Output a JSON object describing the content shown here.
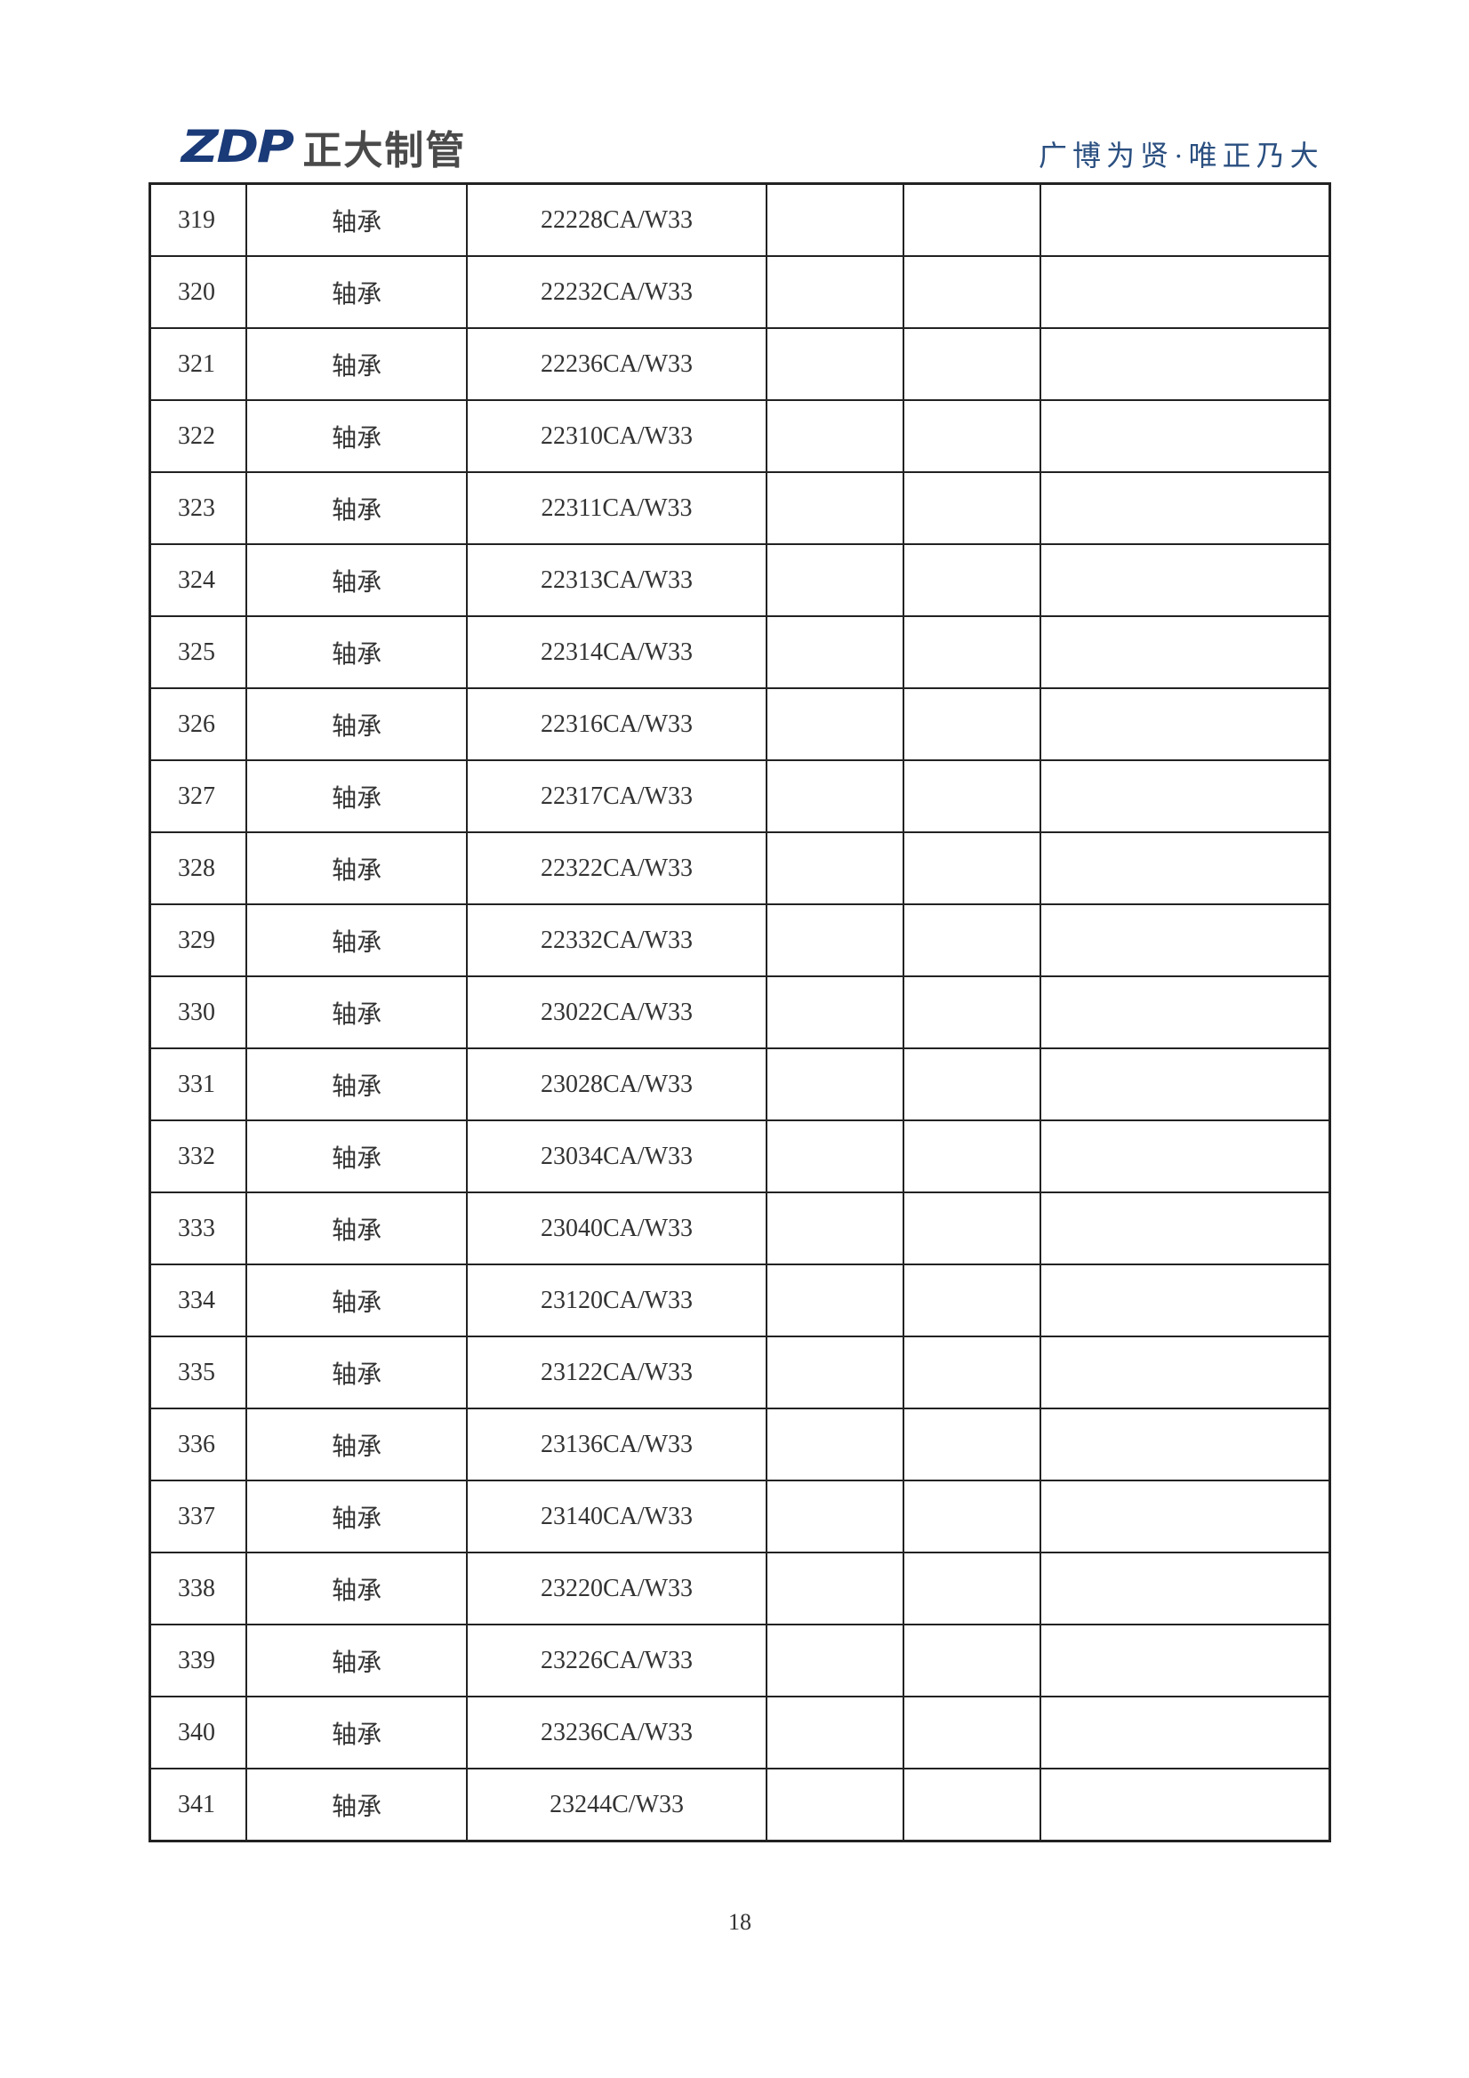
{
  "header": {
    "logo_mark": "ZDP",
    "logo_text": "正大制管",
    "slogan": "广博为贤·唯正乃大"
  },
  "table": {
    "rows": [
      {
        "no": "319",
        "name": "轴承",
        "model": "22228CA/W33"
      },
      {
        "no": "320",
        "name": "轴承",
        "model": "22232CA/W33"
      },
      {
        "no": "321",
        "name": "轴承",
        "model": "22236CA/W33"
      },
      {
        "no": "322",
        "name": "轴承",
        "model": "22310CA/W33"
      },
      {
        "no": "323",
        "name": "轴承",
        "model": "22311CA/W33"
      },
      {
        "no": "324",
        "name": "轴承",
        "model": "22313CA/W33"
      },
      {
        "no": "325",
        "name": "轴承",
        "model": "22314CA/W33"
      },
      {
        "no": "326",
        "name": "轴承",
        "model": "22316CA/W33"
      },
      {
        "no": "327",
        "name": "轴承",
        "model": "22317CA/W33"
      },
      {
        "no": "328",
        "name": "轴承",
        "model": "22322CA/W33"
      },
      {
        "no": "329",
        "name": "轴承",
        "model": "22332CA/W33"
      },
      {
        "no": "330",
        "name": "轴承",
        "model": "23022CA/W33"
      },
      {
        "no": "331",
        "name": "轴承",
        "model": "23028CA/W33"
      },
      {
        "no": "332",
        "name": "轴承",
        "model": "23034CA/W33"
      },
      {
        "no": "333",
        "name": "轴承",
        "model": "23040CA/W33"
      },
      {
        "no": "334",
        "name": "轴承",
        "model": "23120CA/W33"
      },
      {
        "no": "335",
        "name": "轴承",
        "model": "23122CA/W33"
      },
      {
        "no": "336",
        "name": "轴承",
        "model": "23136CA/W33"
      },
      {
        "no": "337",
        "name": "轴承",
        "model": "23140CA/W33"
      },
      {
        "no": "338",
        "name": "轴承",
        "model": "23220CA/W33"
      },
      {
        "no": "339",
        "name": "轴承",
        "model": "23226CA/W33"
      },
      {
        "no": "340",
        "name": "轴承",
        "model": "23236CA/W33"
      },
      {
        "no": "341",
        "name": "轴承",
        "model": "23244C/W33"
      }
    ]
  },
  "footer": {
    "page_number": "18"
  },
  "colors": {
    "logo_blue": "#1a3a78",
    "slogan_blue": "#2a4f80"
  }
}
